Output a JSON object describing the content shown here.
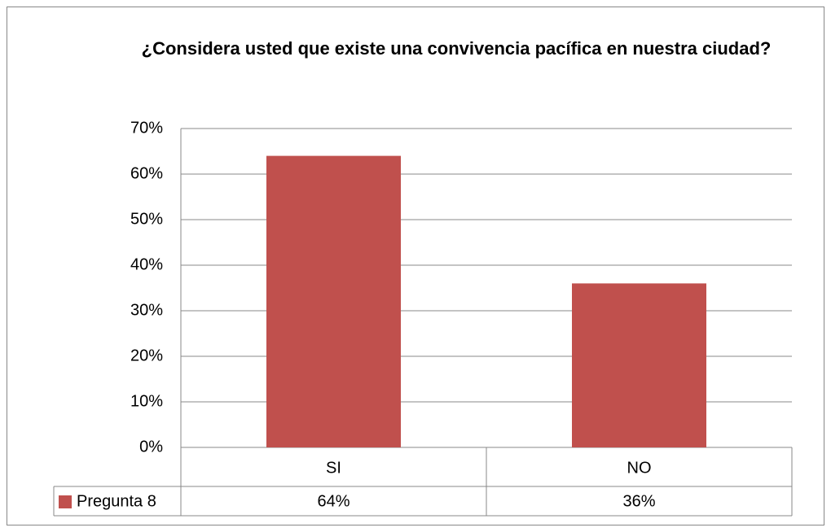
{
  "chart_data": {
    "type": "bar",
    "title": "¿Considera usted que existe una convivencia pacífica en nuestra ciudad?",
    "categories": [
      "SI",
      "NO"
    ],
    "series": [
      {
        "name": "Pregunta 8",
        "color": "#c0504d",
        "values": [
          64,
          36
        ],
        "value_labels": [
          "64%",
          "36%"
        ]
      }
    ],
    "ylim": [
      0,
      70
    ],
    "yticks": [
      {
        "value": 0,
        "label": "0%"
      },
      {
        "value": 10,
        "label": "10%"
      },
      {
        "value": 20,
        "label": "20%"
      },
      {
        "value": 30,
        "label": "30%"
      },
      {
        "value": 40,
        "label": "40%"
      },
      {
        "value": 50,
        "label": "50%"
      },
      {
        "value": 60,
        "label": "60%"
      },
      {
        "value": 70,
        "label": "70%"
      }
    ],
    "grid": true,
    "data_table": true
  }
}
